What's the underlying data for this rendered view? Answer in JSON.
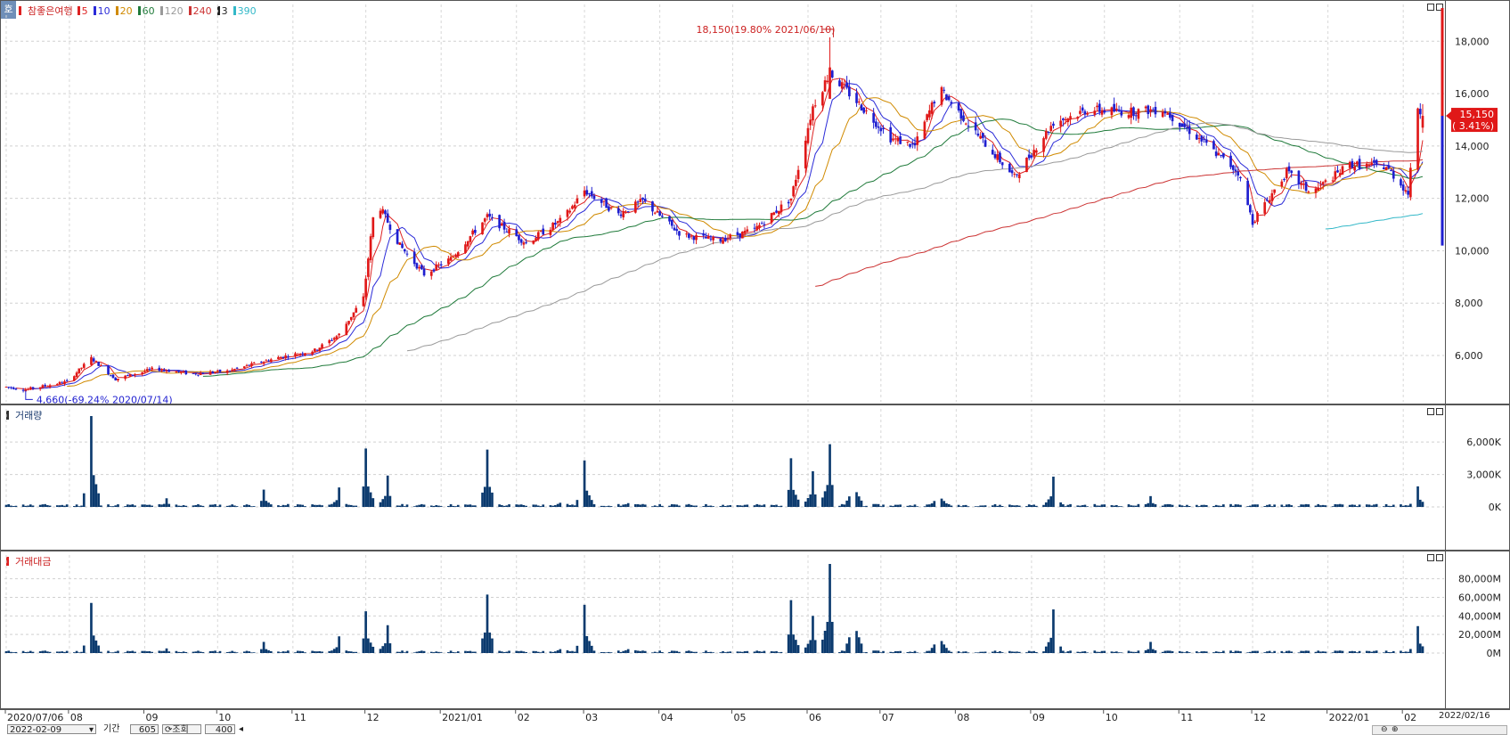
{
  "app": {
    "corner_label": "호",
    "end_date_label": "2022/02/16"
  },
  "legend": {
    "stock_name": "참좋은여행",
    "items": [
      {
        "label": "5",
        "color": "#d22"
      },
      {
        "label": "10",
        "color": "#2b2bd8"
      },
      {
        "label": "20",
        "color": "#d08a00"
      },
      {
        "label": "60",
        "color": "#1f7a3a"
      },
      {
        "label": "120",
        "color": "#9a9a9a"
      },
      {
        "label": "240",
        "color": "#c33"
      },
      {
        "label": "3",
        "color": "#222"
      },
      {
        "label": "390",
        "color": "#33b8c8"
      }
    ]
  },
  "annotations": {
    "high": "18,150(19.80% 2021/06/10)",
    "low": "4,660(-69.24% 2020/07/14)"
  },
  "current_price": {
    "price": "15,150",
    "change": "( 3.41%)",
    "value": 15150
  },
  "volume_panel": {
    "title": "거래량",
    "ticks": [
      "6,000K",
      "3,000K",
      "0K"
    ]
  },
  "amount_panel": {
    "title": "거래대금",
    "ticks": [
      "80,000M",
      "60,000M",
      "40,000M",
      "20,000M",
      "0M"
    ]
  },
  "controls": {
    "date": "2022-02-09",
    "period_label": "기간",
    "period_value": "605",
    "query_label": "조회",
    "count_value": "400"
  },
  "chart_data": {
    "type": "candlestick",
    "x_labels": [
      "2020/07/06",
      "08",
      "09",
      "10",
      "11",
      "12",
      "2021/01",
      "02",
      "03",
      "04",
      "05",
      "06",
      "07",
      "08",
      "09",
      "10",
      "11",
      "12",
      "2022/01",
      "02"
    ],
    "price_axis": {
      "ticks": [
        6000,
        8000,
        10000,
        12000,
        14000,
        16000,
        18000
      ],
      "ylim": [
        4300,
        19200
      ]
    },
    "price_tick_labels": [
      "6,000",
      "8,000",
      "10,000",
      "12,000",
      "14,000",
      "16,000",
      "18,000"
    ],
    "price_anchors": [
      [
        "2020/07/06",
        4800
      ],
      [
        "2020/07/14",
        4700
      ],
      [
        "2020/07/31",
        5000
      ],
      [
        "2020/08/10",
        5900
      ],
      [
        "2020/08/20",
        5100
      ],
      [
        "2020/09/05",
        5500
      ],
      [
        "2020/09/20",
        5300
      ],
      [
        "2020/10/05",
        5400
      ],
      [
        "2020/10/25",
        5900
      ],
      [
        "2020/11/10",
        6200
      ],
      [
        "2020/11/20",
        6800
      ],
      [
        "2020/11/30",
        8200
      ],
      [
        "2020/12/05",
        12000
      ],
      [
        "2020/12/15",
        10200
      ],
      [
        "2020/12/25",
        9100
      ],
      [
        "2021/01/05",
        9700
      ],
      [
        "2021/01/20",
        11300
      ],
      [
        "2021/02/05",
        10300
      ],
      [
        "2021/02/20",
        11200
      ],
      [
        "2021/03/01",
        12300
      ],
      [
        "2021/03/15",
        11400
      ],
      [
        "2021/03/25",
        11900
      ],
      [
        "2021/04/10",
        10600
      ],
      [
        "2021/04/25",
        10400
      ],
      [
        "2021/05/10",
        10800
      ],
      [
        "2021/05/25",
        12000
      ],
      [
        "2021/06/03",
        15500
      ],
      [
        "2021/06/10",
        16800
      ],
      [
        "2021/06/20",
        15800
      ],
      [
        "2021/07/05",
        14300
      ],
      [
        "2021/07/15",
        14000
      ],
      [
        "2021/07/25",
        16200
      ],
      [
        "2021/08/10",
        14400
      ],
      [
        "2021/08/25",
        12800
      ],
      [
        "2021/09/10",
        14900
      ],
      [
        "2021/09/25",
        15400
      ],
      [
        "2021/10/10",
        15300
      ],
      [
        "2021/10/25",
        15400
      ],
      [
        "2021/11/10",
        14200
      ],
      [
        "2021/11/25",
        13000
      ],
      [
        "2021/12/01",
        11100
      ],
      [
        "2021/12/15",
        13000
      ],
      [
        "2021/12/25",
        12200
      ],
      [
        "2022/01/10",
        13300
      ],
      [
        "2022/01/25",
        13200
      ],
      [
        "2022/02/03",
        12200
      ],
      [
        "2022/02/07",
        15500
      ],
      [
        "2022/02/09",
        15150
      ]
    ],
    "volume_spikes_k": [
      [
        "2020/08/10",
        8400
      ],
      [
        "2020/09/10",
        800
      ],
      [
        "2020/10/20",
        1600
      ],
      [
        "2020/11/20",
        1800
      ],
      [
        "2020/12/01",
        5400
      ],
      [
        "2020/12/10",
        2900
      ],
      [
        "2021/01/20",
        5300
      ],
      [
        "2021/02/20",
        1100
      ],
      [
        "2021/03/01",
        4300
      ],
      [
        "2021/03/20",
        1000
      ],
      [
        "2021/05/25",
        4500
      ],
      [
        "2021/06/03",
        3300
      ],
      [
        "2021/06/10",
        5800
      ],
      [
        "2021/06/20",
        3900
      ],
      [
        "2021/07/25",
        2200
      ],
      [
        "2021/09/10",
        2800
      ],
      [
        "2021/10/20",
        1000
      ],
      [
        "2022/02/07",
        1900
      ]
    ],
    "amount_spikes_m": [
      [
        "2020/08/10",
        54000
      ],
      [
        "2020/09/10",
        5000
      ],
      [
        "2020/10/20",
        12000
      ],
      [
        "2020/11/20",
        18000
      ],
      [
        "2020/12/01",
        45000
      ],
      [
        "2020/12/10",
        30000
      ],
      [
        "2021/01/20",
        63000
      ],
      [
        "2021/02/20",
        12000
      ],
      [
        "2021/03/01",
        52000
      ],
      [
        "2021/03/20",
        12000
      ],
      [
        "2021/05/25",
        57000
      ],
      [
        "2021/06/03",
        40000
      ],
      [
        "2021/06/10",
        96000
      ],
      [
        "2021/06/20",
        68000
      ],
      [
        "2021/07/25",
        37000
      ],
      [
        "2021/09/10",
        47000
      ],
      [
        "2021/10/20",
        12000
      ],
      [
        "2022/02/07",
        29000
      ]
    ]
  }
}
